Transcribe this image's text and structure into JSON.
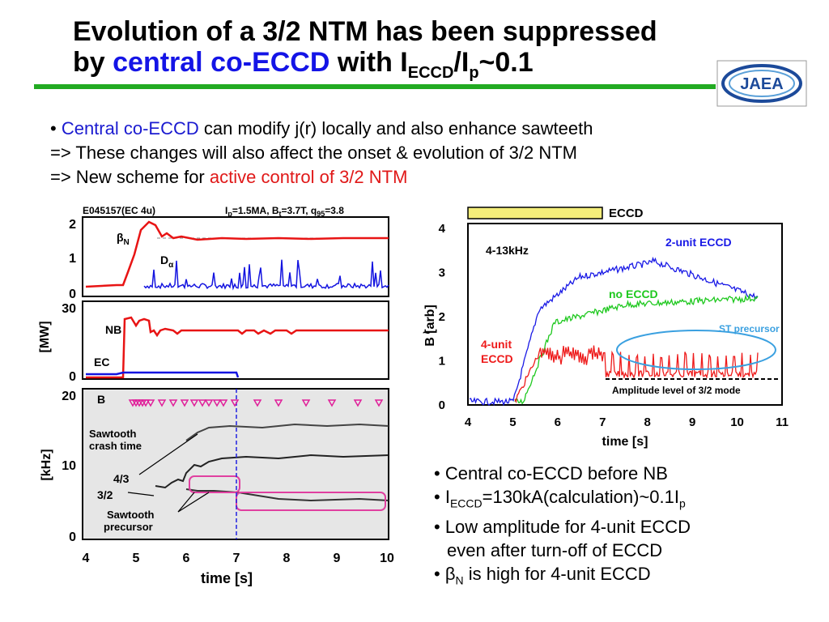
{
  "title": {
    "line1": "Evolution of a 3/2 NTM has been suppressed",
    "line2_prefix": "by ",
    "line2_blue": "central co-ECCD",
    "line2_mid": " with I",
    "line2_sub1": "ECCD",
    "line2_slash": "/I",
    "line2_sub2": "p",
    "line2_end": "~0.1"
  },
  "logo": {
    "text": "JAEA"
  },
  "top_bullets": {
    "b1_blue": "Central co-ECCD",
    "b1_rest": " can modify j(r) locally and also enhance sawteeth",
    "b2": "=> These changes will also affect the onset & evolution of 3/2 NTM",
    "b3_prefix": "=> New scheme for ",
    "b3_red": "active control of 3/2 NTM"
  },
  "left_figure": {
    "shot": "E045157(EC 4u)",
    "params": "I",
    "params_ip": "p",
    "params_mid": "=1.5MA, B",
    "params_bt": "t",
    "params_mid2": "=3.7T, q",
    "params_q": "95",
    "params_end": "=3.8",
    "panel1": {
      "yticks": [
        "2",
        "1",
        "0"
      ],
      "beta_label": "β",
      "beta_sub": "N",
      "da_label": "D",
      "da_sub": "α"
    },
    "panel2": {
      "yticks": [
        "30",
        "0"
      ],
      "ylabel": "[MW]",
      "nb": "NB",
      "ec": "EC"
    },
    "panel3": {
      "yticks": [
        "20",
        "10",
        "0"
      ],
      "ylabel": "[kHz]",
      "b": "B",
      "sawtooth_crash": "Sawtooth\ncrash time",
      "mode43": "4/3",
      "mode32": "3/2",
      "precursor": "Sawtooth\nprecursor"
    },
    "xticks": [
      "4",
      "5",
      "6",
      "7",
      "8",
      "9",
      "10"
    ],
    "xlabel": "time [s]"
  },
  "right_figure": {
    "eccd_bar": "ECCD",
    "freq": "4-13kHz",
    "label_2unit": "2-unit ECCD",
    "label_no": "no ECCD",
    "label_4unit": "4-unit\nECCD",
    "st_precursor": "ST precursor",
    "amp_level": "Amplitude level of 3/2 mode",
    "yticks": [
      "4",
      "3",
      "2",
      "1",
      "0"
    ],
    "ylabel": "B [arb]",
    "ylabel_tilde": "~",
    "xticks": [
      "4",
      "5",
      "6",
      "7",
      "8",
      "9",
      "10",
      "11"
    ],
    "xlabel": "time [s]",
    "colors": {
      "two_unit": "#1a1ae6",
      "no_eccd": "#1ec81e",
      "four_unit": "#ee1a1a",
      "eccd_bar": "#f4ee7a"
    }
  },
  "bottom_bullets": {
    "b1": "• Central co-ECCD before NB",
    "b2_a": "• I",
    "b2_sub": "ECCD",
    "b2_b": "=130kA(calculation)~0.1I",
    "b2_sub2": "p",
    "b3": "• Low amplitude for 4-unit ECCD",
    "b3b": "even after turn-off of ECCD",
    "b4_a": "• β",
    "b4_sub": "N",
    "b4_b": " is high for 4-unit ECCD"
  }
}
